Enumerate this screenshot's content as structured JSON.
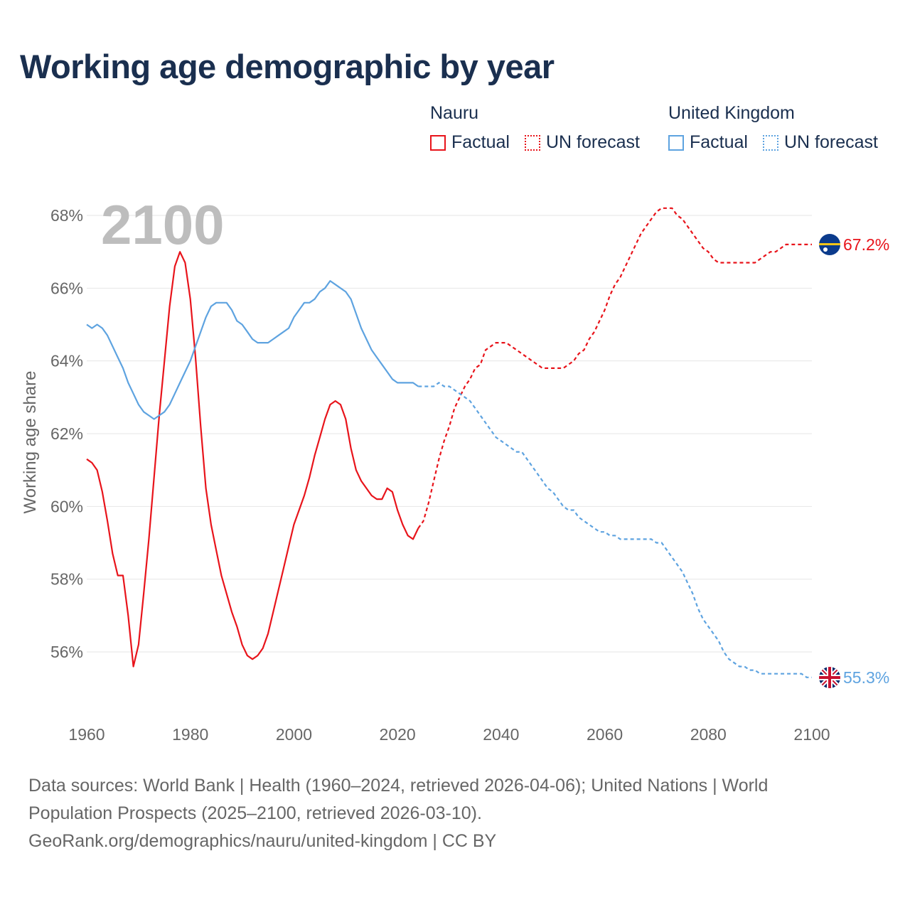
{
  "title": "Working age demographic by year",
  "legend": {
    "groups": [
      {
        "name": "Nauru",
        "color": "#e8141b",
        "items": [
          {
            "label": "Factual",
            "style": "solid"
          },
          {
            "label": "UN forecast",
            "style": "dotted"
          }
        ]
      },
      {
        "name": "United Kingdom",
        "color": "#5ea3e0",
        "items": [
          {
            "label": "Factual",
            "style": "solid"
          },
          {
            "label": "UN forecast",
            "style": "dotted"
          }
        ]
      }
    ]
  },
  "year_label": "2100",
  "footer": {
    "line1": "Data sources: World Bank | Health (1960–2024, retrieved 2026-04-06); United Nations | World",
    "line2": "Population Prospects (2025–2100, retrieved 2026-03-10).",
    "line3": "GeoRank.org/demographics/nauru/united-kingdom | CC BY"
  },
  "chart_data": {
    "type": "line",
    "title": "Working age demographic by year",
    "xlabel": "",
    "ylabel": "Working age share",
    "xlim": [
      1960,
      2100
    ],
    "ylim": [
      54.5,
      68.5
    ],
    "x_ticks": [
      1960,
      1980,
      2000,
      2020,
      2040,
      2060,
      2080,
      2100
    ],
    "y_ticks": [
      56,
      58,
      60,
      62,
      64,
      66,
      68
    ],
    "y_tick_suffix": "%",
    "grid": true,
    "forecast_start": 2024,
    "series": [
      {
        "name": "Nauru",
        "color": "#e8141b",
        "end_label": "67.2%",
        "flag": "nauru-flag",
        "points": [
          [
            1960,
            61.3
          ],
          [
            1961,
            61.2
          ],
          [
            1962,
            61.0
          ],
          [
            1963,
            60.4
          ],
          [
            1964,
            59.6
          ],
          [
            1965,
            58.7
          ],
          [
            1966,
            58.1
          ],
          [
            1967,
            58.1
          ],
          [
            1968,
            57.0
          ],
          [
            1969,
            55.6
          ],
          [
            1970,
            56.2
          ],
          [
            1971,
            57.6
          ],
          [
            1972,
            59.1
          ],
          [
            1973,
            60.8
          ],
          [
            1974,
            62.5
          ],
          [
            1975,
            64.0
          ],
          [
            1976,
            65.5
          ],
          [
            1977,
            66.6
          ],
          [
            1978,
            67.0
          ],
          [
            1979,
            66.7
          ],
          [
            1980,
            65.7
          ],
          [
            1981,
            64.1
          ],
          [
            1982,
            62.2
          ],
          [
            1983,
            60.5
          ],
          [
            1984,
            59.5
          ],
          [
            1985,
            58.8
          ],
          [
            1986,
            58.1
          ],
          [
            1987,
            57.6
          ],
          [
            1988,
            57.1
          ],
          [
            1989,
            56.7
          ],
          [
            1990,
            56.2
          ],
          [
            1991,
            55.9
          ],
          [
            1992,
            55.8
          ],
          [
            1993,
            55.9
          ],
          [
            1994,
            56.1
          ],
          [
            1995,
            56.5
          ],
          [
            1996,
            57.1
          ],
          [
            1997,
            57.7
          ],
          [
            1998,
            58.3
          ],
          [
            1999,
            58.9
          ],
          [
            2000,
            59.5
          ],
          [
            2001,
            59.9
          ],
          [
            2002,
            60.3
          ],
          [
            2003,
            60.8
          ],
          [
            2004,
            61.4
          ],
          [
            2005,
            61.9
          ],
          [
            2006,
            62.4
          ],
          [
            2007,
            62.8
          ],
          [
            2008,
            62.9
          ],
          [
            2009,
            62.8
          ],
          [
            2010,
            62.4
          ],
          [
            2011,
            61.6
          ],
          [
            2012,
            61.0
          ],
          [
            2013,
            60.7
          ],
          [
            2014,
            60.5
          ],
          [
            2015,
            60.3
          ],
          [
            2016,
            60.2
          ],
          [
            2017,
            60.2
          ],
          [
            2018,
            60.5
          ],
          [
            2019,
            60.4
          ],
          [
            2020,
            59.9
          ],
          [
            2021,
            59.5
          ],
          [
            2022,
            59.2
          ],
          [
            2023,
            59.1
          ],
          [
            2024,
            59.4
          ],
          [
            2025,
            59.6
          ],
          [
            2026,
            60.1
          ],
          [
            2027,
            60.7
          ],
          [
            2028,
            61.3
          ],
          [
            2029,
            61.8
          ],
          [
            2030,
            62.2
          ],
          [
            2031,
            62.7
          ],
          [
            2032,
            63.0
          ],
          [
            2033,
            63.3
          ],
          [
            2034,
            63.5
          ],
          [
            2035,
            63.8
          ],
          [
            2036,
            63.9
          ],
          [
            2037,
            64.3
          ],
          [
            2038,
            64.4
          ],
          [
            2039,
            64.5
          ],
          [
            2040,
            64.5
          ],
          [
            2041,
            64.5
          ],
          [
            2042,
            64.4
          ],
          [
            2043,
            64.3
          ],
          [
            2044,
            64.2
          ],
          [
            2045,
            64.1
          ],
          [
            2046,
            64.0
          ],
          [
            2047,
            63.9
          ],
          [
            2048,
            63.8
          ],
          [
            2049,
            63.8
          ],
          [
            2050,
            63.8
          ],
          [
            2051,
            63.8
          ],
          [
            2052,
            63.8
          ],
          [
            2053,
            63.9
          ],
          [
            2054,
            64.0
          ],
          [
            2055,
            64.2
          ],
          [
            2056,
            64.3
          ],
          [
            2057,
            64.6
          ],
          [
            2058,
            64.8
          ],
          [
            2059,
            65.1
          ],
          [
            2060,
            65.4
          ],
          [
            2061,
            65.8
          ],
          [
            2062,
            66.1
          ],
          [
            2063,
            66.3
          ],
          [
            2064,
            66.6
          ],
          [
            2065,
            66.9
          ],
          [
            2066,
            67.2
          ],
          [
            2067,
            67.5
          ],
          [
            2068,
            67.7
          ],
          [
            2069,
            67.9
          ],
          [
            2070,
            68.1
          ],
          [
            2071,
            68.2
          ],
          [
            2072,
            68.2
          ],
          [
            2073,
            68.2
          ],
          [
            2074,
            68.0
          ],
          [
            2075,
            67.9
          ],
          [
            2076,
            67.7
          ],
          [
            2077,
            67.5
          ],
          [
            2078,
            67.3
          ],
          [
            2079,
            67.1
          ],
          [
            2080,
            67.0
          ],
          [
            2081,
            66.8
          ],
          [
            2082,
            66.7
          ],
          [
            2083,
            66.7
          ],
          [
            2084,
            66.7
          ],
          [
            2085,
            66.7
          ],
          [
            2086,
            66.7
          ],
          [
            2087,
            66.7
          ],
          [
            2088,
            66.7
          ],
          [
            2089,
            66.7
          ],
          [
            2090,
            66.8
          ],
          [
            2091,
            66.9
          ],
          [
            2092,
            67.0
          ],
          [
            2093,
            67.0
          ],
          [
            2094,
            67.1
          ],
          [
            2095,
            67.2
          ],
          [
            2096,
            67.2
          ],
          [
            2097,
            67.2
          ],
          [
            2098,
            67.2
          ],
          [
            2099,
            67.2
          ],
          [
            2100,
            67.2
          ]
        ]
      },
      {
        "name": "United Kingdom",
        "color": "#5ea3e0",
        "end_label": "55.3%",
        "flag": "united-kingdom-flag",
        "points": [
          [
            1960,
            65.0
          ],
          [
            1961,
            64.9
          ],
          [
            1962,
            65.0
          ],
          [
            1963,
            64.9
          ],
          [
            1964,
            64.7
          ],
          [
            1965,
            64.4
          ],
          [
            1966,
            64.1
          ],
          [
            1967,
            63.8
          ],
          [
            1968,
            63.4
          ],
          [
            1969,
            63.1
          ],
          [
            1970,
            62.8
          ],
          [
            1971,
            62.6
          ],
          [
            1972,
            62.5
          ],
          [
            1973,
            62.4
          ],
          [
            1974,
            62.5
          ],
          [
            1975,
            62.6
          ],
          [
            1976,
            62.8
          ],
          [
            1977,
            63.1
          ],
          [
            1978,
            63.4
          ],
          [
            1979,
            63.7
          ],
          [
            1980,
            64.0
          ],
          [
            1981,
            64.4
          ],
          [
            1982,
            64.8
          ],
          [
            1983,
            65.2
          ],
          [
            1984,
            65.5
          ],
          [
            1985,
            65.6
          ],
          [
            1986,
            65.6
          ],
          [
            1987,
            65.6
          ],
          [
            1988,
            65.4
          ],
          [
            1989,
            65.1
          ],
          [
            1990,
            65.0
          ],
          [
            1991,
            64.8
          ],
          [
            1992,
            64.6
          ],
          [
            1993,
            64.5
          ],
          [
            1994,
            64.5
          ],
          [
            1995,
            64.5
          ],
          [
            1996,
            64.6
          ],
          [
            1997,
            64.7
          ],
          [
            1998,
            64.8
          ],
          [
            1999,
            64.9
          ],
          [
            2000,
            65.2
          ],
          [
            2001,
            65.4
          ],
          [
            2002,
            65.6
          ],
          [
            2003,
            65.6
          ],
          [
            2004,
            65.7
          ],
          [
            2005,
            65.9
          ],
          [
            2006,
            66.0
          ],
          [
            2007,
            66.2
          ],
          [
            2008,
            66.1
          ],
          [
            2009,
            66.0
          ],
          [
            2010,
            65.9
          ],
          [
            2011,
            65.7
          ],
          [
            2012,
            65.3
          ],
          [
            2013,
            64.9
          ],
          [
            2014,
            64.6
          ],
          [
            2015,
            64.3
          ],
          [
            2016,
            64.1
          ],
          [
            2017,
            63.9
          ],
          [
            2018,
            63.7
          ],
          [
            2019,
            63.5
          ],
          [
            2020,
            63.4
          ],
          [
            2021,
            63.4
          ],
          [
            2022,
            63.4
          ],
          [
            2023,
            63.4
          ],
          [
            2024,
            63.3
          ],
          [
            2025,
            63.3
          ],
          [
            2026,
            63.3
          ],
          [
            2027,
            63.3
          ],
          [
            2028,
            63.4
          ],
          [
            2029,
            63.3
          ],
          [
            2030,
            63.3
          ],
          [
            2031,
            63.2
          ],
          [
            2032,
            63.1
          ],
          [
            2033,
            63.0
          ],
          [
            2034,
            62.9
          ],
          [
            2035,
            62.7
          ],
          [
            2036,
            62.5
          ],
          [
            2037,
            62.3
          ],
          [
            2038,
            62.1
          ],
          [
            2039,
            61.9
          ],
          [
            2040,
            61.8
          ],
          [
            2041,
            61.7
          ],
          [
            2042,
            61.6
          ],
          [
            2043,
            61.5
          ],
          [
            2044,
            61.5
          ],
          [
            2045,
            61.3
          ],
          [
            2046,
            61.1
          ],
          [
            2047,
            60.9
          ],
          [
            2048,
            60.7
          ],
          [
            2049,
            60.5
          ],
          [
            2050,
            60.4
          ],
          [
            2051,
            60.2
          ],
          [
            2052,
            60.0
          ],
          [
            2053,
            59.9
          ],
          [
            2054,
            59.9
          ],
          [
            2055,
            59.7
          ],
          [
            2056,
            59.6
          ],
          [
            2057,
            59.5
          ],
          [
            2058,
            59.4
          ],
          [
            2059,
            59.3
          ],
          [
            2060,
            59.3
          ],
          [
            2061,
            59.2
          ],
          [
            2062,
            59.2
          ],
          [
            2063,
            59.1
          ],
          [
            2064,
            59.1
          ],
          [
            2065,
            59.1
          ],
          [
            2066,
            59.1
          ],
          [
            2067,
            59.1
          ],
          [
            2068,
            59.1
          ],
          [
            2069,
            59.1
          ],
          [
            2070,
            59.0
          ],
          [
            2071,
            59.0
          ],
          [
            2072,
            58.8
          ],
          [
            2073,
            58.6
          ],
          [
            2074,
            58.4
          ],
          [
            2075,
            58.2
          ],
          [
            2076,
            57.9
          ],
          [
            2077,
            57.6
          ],
          [
            2078,
            57.2
          ],
          [
            2079,
            56.9
          ],
          [
            2080,
            56.7
          ],
          [
            2081,
            56.5
          ],
          [
            2082,
            56.3
          ],
          [
            2083,
            56.0
          ],
          [
            2084,
            55.8
          ],
          [
            2085,
            55.7
          ],
          [
            2086,
            55.6
          ],
          [
            2087,
            55.6
          ],
          [
            2088,
            55.5
          ],
          [
            2089,
            55.5
          ],
          [
            2090,
            55.4
          ],
          [
            2091,
            55.4
          ],
          [
            2092,
            55.4
          ],
          [
            2093,
            55.4
          ],
          [
            2094,
            55.4
          ],
          [
            2095,
            55.4
          ],
          [
            2096,
            55.4
          ],
          [
            2097,
            55.4
          ],
          [
            2098,
            55.4
          ],
          [
            2099,
            55.3
          ],
          [
            2100,
            55.3
          ]
        ]
      }
    ]
  }
}
